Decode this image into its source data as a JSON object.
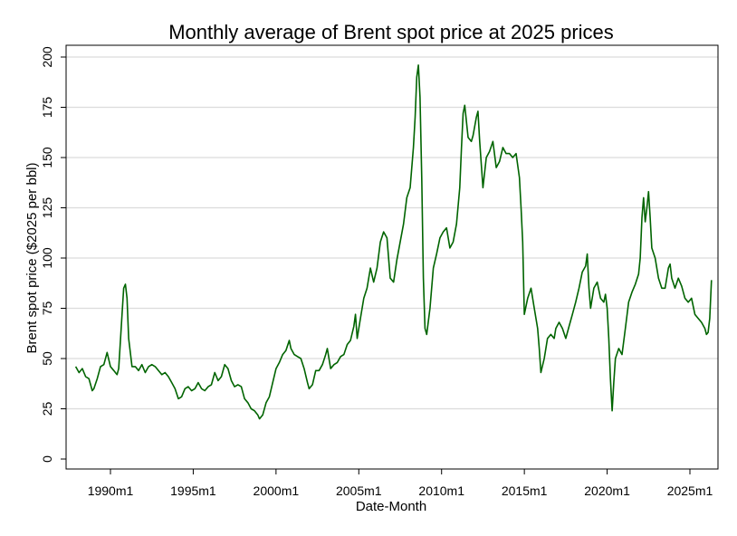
{
  "chart_data": {
    "type": "line",
    "title": "Monthly average of Brent spot price at 2025 prices",
    "xlabel": "Date-Month",
    "ylabel": "Brent spot price ($2025 per bbl)",
    "ylim": [
      0,
      200
    ],
    "xlim": [
      1987.7,
      2026.6
    ],
    "grid": true,
    "y_ticks": [
      0,
      25,
      50,
      75,
      100,
      125,
      150,
      175,
      200
    ],
    "x_ticks": [
      {
        "value": 1990,
        "label": "1990m1"
      },
      {
        "value": 1995,
        "label": "1995m1"
      },
      {
        "value": 2000,
        "label": "2000m1"
      },
      {
        "value": 2005,
        "label": "2005m1"
      },
      {
        "value": 2010,
        "label": "2010m1"
      },
      {
        "value": 2015,
        "label": "2015m1"
      },
      {
        "value": 2020,
        "label": "2020m1"
      },
      {
        "value": 2025,
        "label": "2025m1"
      }
    ],
    "line_color": "#006400",
    "series": [
      {
        "name": "Brent spot price",
        "points": [
          [
            1987.9,
            46
          ],
          [
            1988.1,
            43
          ],
          [
            1988.3,
            45
          ],
          [
            1988.5,
            41
          ],
          [
            1988.7,
            40
          ],
          [
            1988.9,
            34
          ],
          [
            1989.0,
            35
          ],
          [
            1989.2,
            40
          ],
          [
            1989.4,
            46
          ],
          [
            1989.6,
            47
          ],
          [
            1989.8,
            53
          ],
          [
            1990.0,
            46
          ],
          [
            1990.2,
            44
          ],
          [
            1990.4,
            42
          ],
          [
            1990.5,
            45
          ],
          [
            1990.7,
            72
          ],
          [
            1990.8,
            85
          ],
          [
            1990.9,
            87
          ],
          [
            1991.0,
            80
          ],
          [
            1991.1,
            60
          ],
          [
            1991.3,
            46
          ],
          [
            1991.5,
            46
          ],
          [
            1991.7,
            44
          ],
          [
            1991.9,
            47
          ],
          [
            1992.1,
            43
          ],
          [
            1992.3,
            46
          ],
          [
            1992.5,
            47
          ],
          [
            1992.7,
            46
          ],
          [
            1992.9,
            44
          ],
          [
            1993.1,
            42
          ],
          [
            1993.3,
            43
          ],
          [
            1993.5,
            41
          ],
          [
            1993.7,
            38
          ],
          [
            1993.9,
            35
          ],
          [
            1994.1,
            30
          ],
          [
            1994.3,
            31
          ],
          [
            1994.5,
            35
          ],
          [
            1994.7,
            36
          ],
          [
            1994.9,
            34
          ],
          [
            1995.1,
            35
          ],
          [
            1995.3,
            38
          ],
          [
            1995.5,
            35
          ],
          [
            1995.7,
            34
          ],
          [
            1995.9,
            36
          ],
          [
            1996.1,
            37
          ],
          [
            1996.3,
            43
          ],
          [
            1996.5,
            39
          ],
          [
            1996.7,
            41
          ],
          [
            1996.9,
            47
          ],
          [
            1997.1,
            45
          ],
          [
            1997.3,
            39
          ],
          [
            1997.5,
            36
          ],
          [
            1997.7,
            37
          ],
          [
            1997.9,
            36
          ],
          [
            1998.1,
            30
          ],
          [
            1998.3,
            28
          ],
          [
            1998.5,
            25
          ],
          [
            1998.7,
            24
          ],
          [
            1998.9,
            22
          ],
          [
            1999.0,
            20
          ],
          [
            1999.2,
            22
          ],
          [
            1999.4,
            28
          ],
          [
            1999.6,
            31
          ],
          [
            1999.8,
            38
          ],
          [
            2000.0,
            45
          ],
          [
            2000.2,
            48
          ],
          [
            2000.4,
            52
          ],
          [
            2000.6,
            54
          ],
          [
            2000.8,
            59
          ],
          [
            2000.9,
            55
          ],
          [
            2001.1,
            52
          ],
          [
            2001.3,
            51
          ],
          [
            2001.5,
            50
          ],
          [
            2001.7,
            45
          ],
          [
            2001.9,
            38
          ],
          [
            2002.0,
            35
          ],
          [
            2002.2,
            37
          ],
          [
            2002.4,
            44
          ],
          [
            2002.6,
            44
          ],
          [
            2002.8,
            47
          ],
          [
            2003.0,
            52
          ],
          [
            2003.1,
            55
          ],
          [
            2003.3,
            45
          ],
          [
            2003.5,
            47
          ],
          [
            2003.7,
            48
          ],
          [
            2003.9,
            51
          ],
          [
            2004.1,
            52
          ],
          [
            2004.3,
            57
          ],
          [
            2004.5,
            59
          ],
          [
            2004.7,
            66
          ],
          [
            2004.8,
            72
          ],
          [
            2004.9,
            60
          ],
          [
            2005.1,
            70
          ],
          [
            2005.3,
            80
          ],
          [
            2005.5,
            85
          ],
          [
            2005.7,
            95
          ],
          [
            2005.9,
            88
          ],
          [
            2006.1,
            95
          ],
          [
            2006.3,
            108
          ],
          [
            2006.5,
            113
          ],
          [
            2006.7,
            110
          ],
          [
            2006.9,
            90
          ],
          [
            2007.1,
            88
          ],
          [
            2007.3,
            99
          ],
          [
            2007.5,
            108
          ],
          [
            2007.7,
            117
          ],
          [
            2007.9,
            130
          ],
          [
            2008.1,
            135
          ],
          [
            2008.3,
            155
          ],
          [
            2008.4,
            170
          ],
          [
            2008.5,
            190
          ],
          [
            2008.6,
            196
          ],
          [
            2008.7,
            180
          ],
          [
            2008.8,
            140
          ],
          [
            2008.9,
            90
          ],
          [
            2009.0,
            65
          ],
          [
            2009.1,
            62
          ],
          [
            2009.3,
            75
          ],
          [
            2009.5,
            95
          ],
          [
            2009.7,
            102
          ],
          [
            2009.9,
            110
          ],
          [
            2010.1,
            113
          ],
          [
            2010.3,
            115
          ],
          [
            2010.5,
            105
          ],
          [
            2010.7,
            108
          ],
          [
            2010.9,
            117
          ],
          [
            2011.1,
            135
          ],
          [
            2011.2,
            155
          ],
          [
            2011.3,
            172
          ],
          [
            2011.4,
            176
          ],
          [
            2011.6,
            160
          ],
          [
            2011.8,
            158
          ],
          [
            2011.9,
            161
          ],
          [
            2012.1,
            170
          ],
          [
            2012.2,
            173
          ],
          [
            2012.3,
            158
          ],
          [
            2012.5,
            135
          ],
          [
            2012.7,
            150
          ],
          [
            2012.9,
            153
          ],
          [
            2013.1,
            158
          ],
          [
            2013.3,
            145
          ],
          [
            2013.5,
            148
          ],
          [
            2013.7,
            155
          ],
          [
            2013.9,
            152
          ],
          [
            2014.1,
            152
          ],
          [
            2014.3,
            150
          ],
          [
            2014.5,
            152
          ],
          [
            2014.7,
            140
          ],
          [
            2014.8,
            125
          ],
          [
            2014.9,
            108
          ],
          [
            2015.0,
            72
          ],
          [
            2015.2,
            80
          ],
          [
            2015.4,
            85
          ],
          [
            2015.6,
            75
          ],
          [
            2015.8,
            65
          ],
          [
            2015.9,
            55
          ],
          [
            2016.0,
            43
          ],
          [
            2016.2,
            50
          ],
          [
            2016.4,
            60
          ],
          [
            2016.6,
            62
          ],
          [
            2016.8,
            60
          ],
          [
            2016.9,
            65
          ],
          [
            2017.1,
            68
          ],
          [
            2017.3,
            65
          ],
          [
            2017.5,
            60
          ],
          [
            2017.7,
            66
          ],
          [
            2017.9,
            72
          ],
          [
            2018.1,
            78
          ],
          [
            2018.3,
            85
          ],
          [
            2018.5,
            93
          ],
          [
            2018.7,
            96
          ],
          [
            2018.8,
            102
          ],
          [
            2018.9,
            85
          ],
          [
            2019.0,
            75
          ],
          [
            2019.2,
            85
          ],
          [
            2019.4,
            88
          ],
          [
            2019.6,
            80
          ],
          [
            2019.8,
            78
          ],
          [
            2019.9,
            82
          ],
          [
            2020.0,
            75
          ],
          [
            2020.1,
            60
          ],
          [
            2020.2,
            40
          ],
          [
            2020.3,
            24
          ],
          [
            2020.4,
            38
          ],
          [
            2020.5,
            50
          ],
          [
            2020.7,
            55
          ],
          [
            2020.9,
            52
          ],
          [
            2021.1,
            65
          ],
          [
            2021.3,
            78
          ],
          [
            2021.5,
            83
          ],
          [
            2021.7,
            87
          ],
          [
            2021.9,
            92
          ],
          [
            2022.0,
            100
          ],
          [
            2022.1,
            120
          ],
          [
            2022.2,
            130
          ],
          [
            2022.3,
            118
          ],
          [
            2022.4,
            125
          ],
          [
            2022.5,
            133
          ],
          [
            2022.6,
            120
          ],
          [
            2022.7,
            105
          ],
          [
            2022.9,
            100
          ],
          [
            2023.1,
            90
          ],
          [
            2023.3,
            85
          ],
          [
            2023.5,
            85
          ],
          [
            2023.7,
            95
          ],
          [
            2023.8,
            97
          ],
          [
            2023.9,
            90
          ],
          [
            2024.1,
            85
          ],
          [
            2024.3,
            90
          ],
          [
            2024.5,
            86
          ],
          [
            2024.7,
            80
          ],
          [
            2024.9,
            78
          ],
          [
            2025.1,
            80
          ],
          [
            2025.3,
            72
          ],
          [
            2025.5,
            70
          ],
          [
            2025.7,
            68
          ],
          [
            2025.9,
            65
          ],
          [
            2026.0,
            62
          ],
          [
            2026.1,
            63
          ],
          [
            2026.2,
            70
          ],
          [
            2026.3,
            89
          ]
        ]
      }
    ]
  }
}
